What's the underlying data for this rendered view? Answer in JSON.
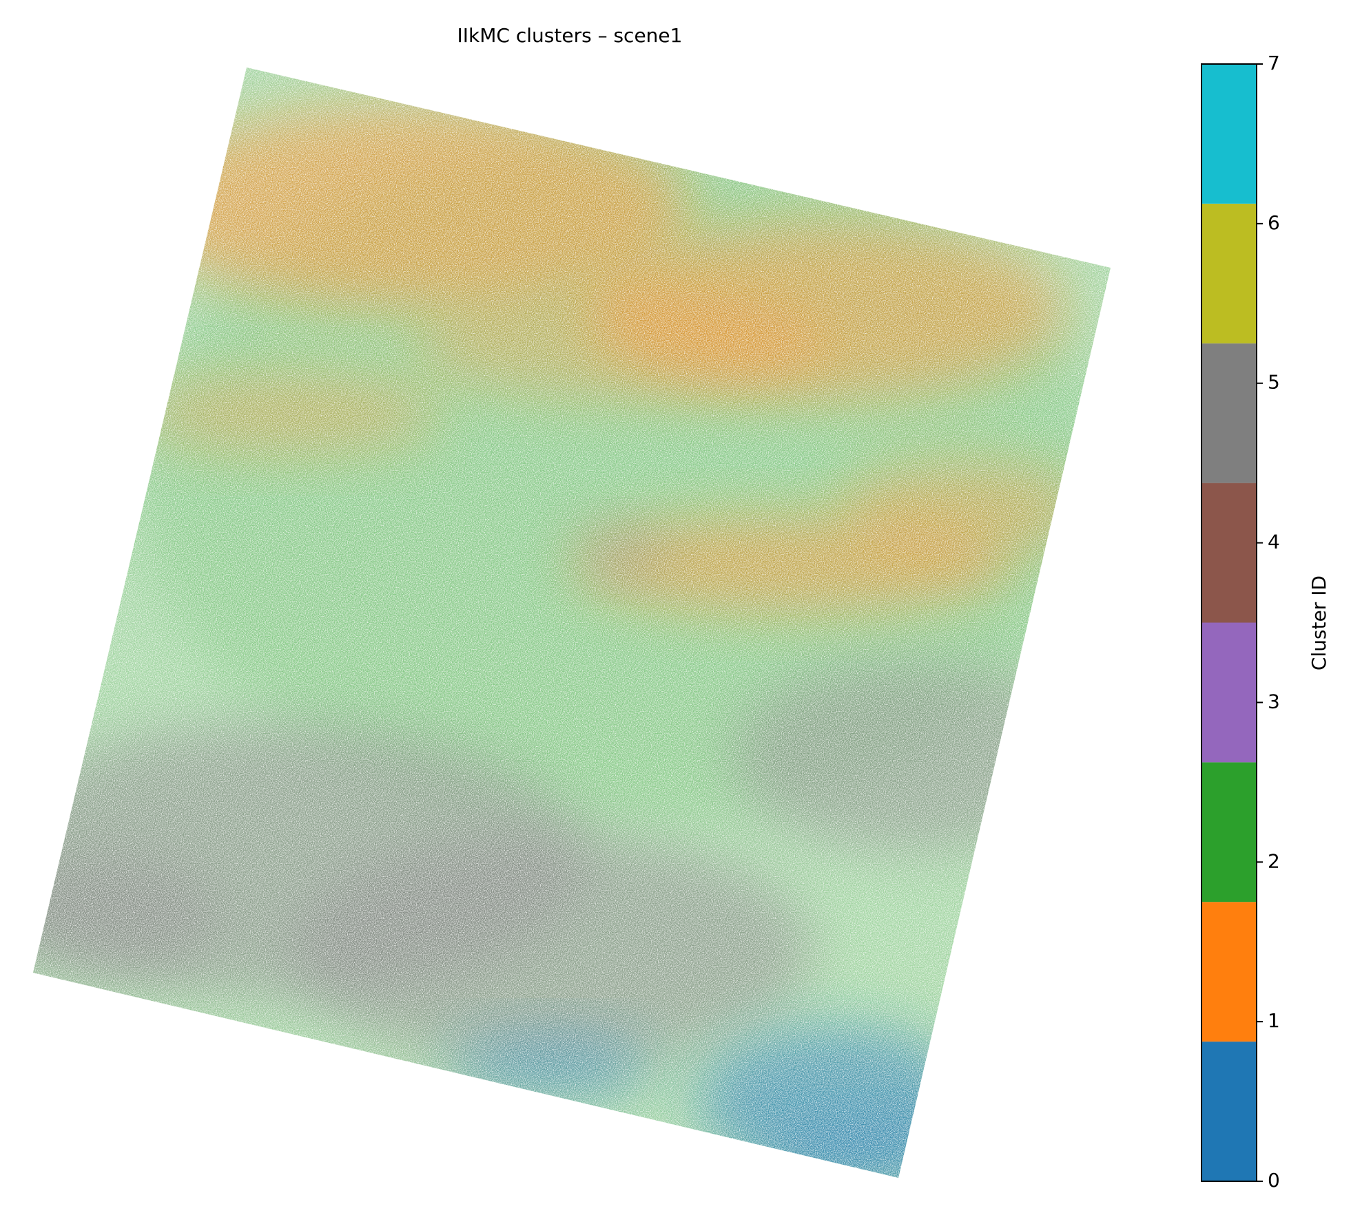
{
  "chart_data": {
    "type": "image",
    "title": "IIkMC clusters – scene1",
    "colorbar": {
      "label": "Cluster ID",
      "lim": [
        0,
        7
      ],
      "ticks": [
        0,
        1,
        2,
        3,
        4,
        5,
        6,
        7
      ],
      "colors": [
        "#1f77b4",
        "#ff7f0e",
        "#2ca02c",
        "#9467bd",
        "#8c564b",
        "#7f7f7f",
        "#bcbd22",
        "#17becf"
      ]
    }
  }
}
